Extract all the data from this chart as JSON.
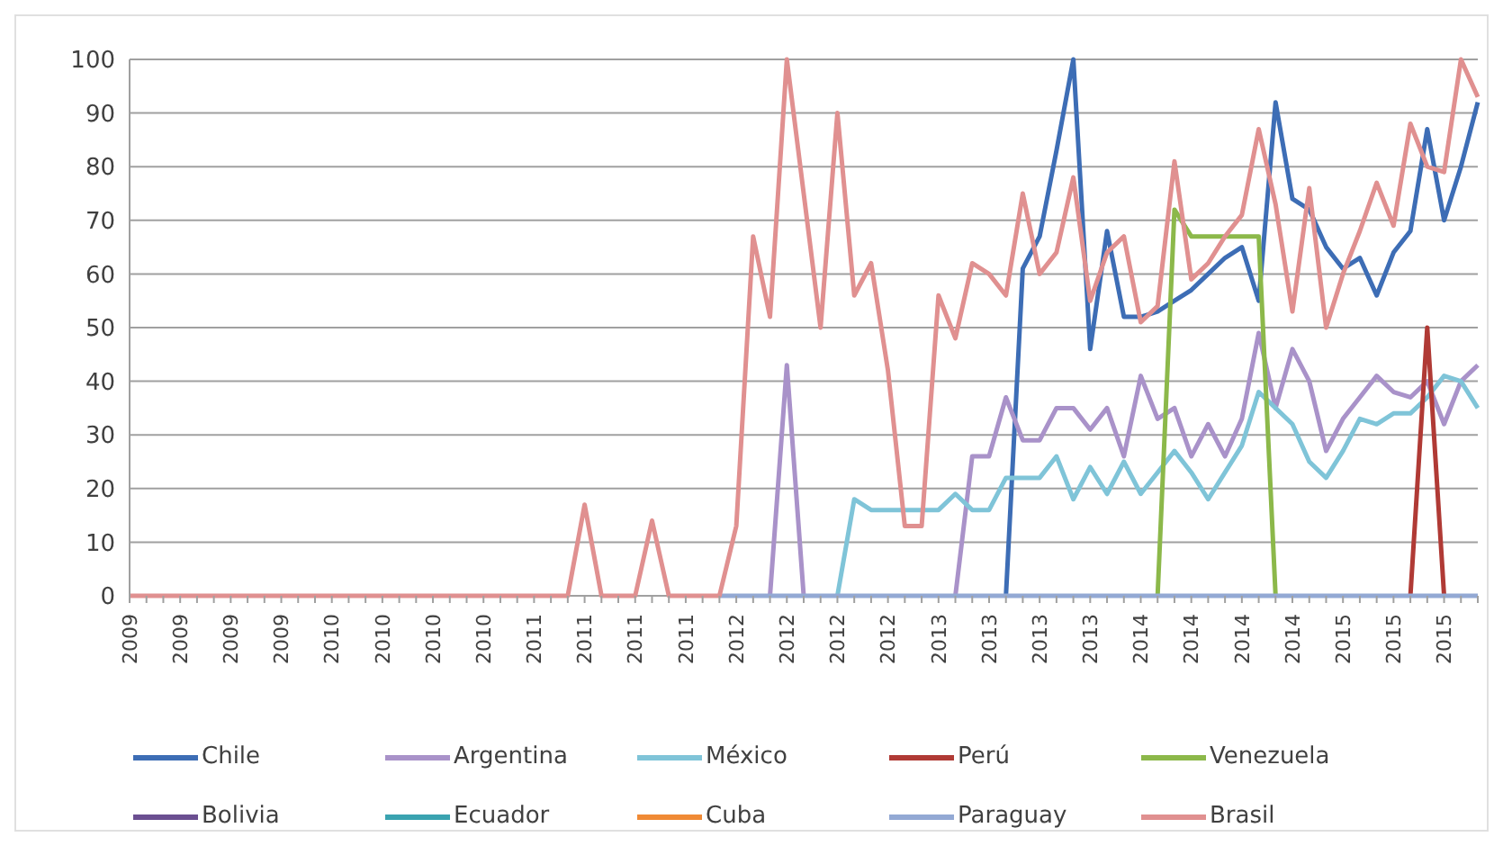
{
  "chart_data": {
    "type": "line",
    "categories": [
      "2009",
      null,
      null,
      "2009",
      null,
      null,
      "2009",
      null,
      null,
      "2009",
      null,
      null,
      "2010",
      null,
      null,
      "2010",
      null,
      null,
      "2010",
      null,
      null,
      "2010",
      null,
      null,
      "2011",
      null,
      null,
      "2011",
      null,
      null,
      "2011",
      null,
      null,
      "2011",
      null,
      null,
      "2012",
      null,
      null,
      "2012",
      null,
      null,
      "2012",
      null,
      null,
      "2012",
      null,
      null,
      "2013",
      null,
      null,
      "2013",
      null,
      null,
      "2013",
      null,
      null,
      "2013",
      null,
      null,
      "2014",
      null,
      null,
      "2014",
      null,
      null,
      "2014",
      null,
      null,
      "2014",
      null,
      null,
      "2015",
      null,
      null,
      "2015",
      null,
      null,
      "2015",
      null,
      null
    ],
    "series": [
      {
        "name": "Chile",
        "color": "#3d6db5",
        "values": [
          null,
          null,
          null,
          null,
          null,
          null,
          null,
          null,
          null,
          null,
          null,
          null,
          null,
          null,
          null,
          null,
          null,
          null,
          null,
          null,
          null,
          null,
          null,
          null,
          null,
          null,
          null,
          null,
          null,
          null,
          null,
          null,
          null,
          null,
          null,
          null,
          null,
          null,
          null,
          null,
          null,
          null,
          null,
          null,
          null,
          null,
          null,
          null,
          null,
          null,
          null,
          null,
          0,
          61,
          67,
          83,
          100,
          46,
          68,
          52,
          52,
          53,
          55,
          57,
          60,
          63,
          65,
          55,
          92,
          74,
          72,
          65,
          61,
          63,
          56,
          64,
          68,
          87,
          70,
          80,
          92
        ]
      },
      {
        "name": "Argentina",
        "color": "#a992c9",
        "values": [
          null,
          null,
          null,
          null,
          null,
          null,
          null,
          null,
          null,
          null,
          null,
          null,
          null,
          null,
          null,
          null,
          null,
          null,
          null,
          null,
          null,
          null,
          null,
          null,
          null,
          null,
          null,
          null,
          null,
          null,
          null,
          null,
          null,
          null,
          null,
          null,
          null,
          null,
          0,
          43,
          0,
          null,
          null,
          null,
          null,
          null,
          null,
          null,
          null,
          0,
          26,
          26,
          37,
          29,
          29,
          35,
          35,
          31,
          35,
          26,
          41,
          33,
          35,
          26,
          32,
          26,
          33,
          49,
          35,
          46,
          40,
          27,
          33,
          37,
          41,
          38,
          37,
          40,
          32,
          40,
          43
        ]
      },
      {
        "name": "México",
        "color": "#7fc4d8",
        "values": [
          null,
          null,
          null,
          null,
          null,
          null,
          null,
          null,
          null,
          null,
          null,
          null,
          null,
          null,
          null,
          null,
          null,
          null,
          null,
          null,
          null,
          null,
          null,
          null,
          null,
          null,
          null,
          null,
          null,
          null,
          null,
          null,
          null,
          null,
          null,
          null,
          null,
          null,
          null,
          null,
          null,
          null,
          0,
          18,
          16,
          16,
          16,
          16,
          16,
          19,
          16,
          16,
          22,
          22,
          22,
          26,
          18,
          24,
          19,
          25,
          19,
          23,
          27,
          23,
          18,
          23,
          28,
          38,
          35,
          32,
          25,
          22,
          27,
          33,
          32,
          34,
          34,
          37,
          41,
          40,
          35
        ]
      },
      {
        "name": "Perú",
        "color": "#b03a35",
        "values": [
          null,
          null,
          null,
          null,
          null,
          null,
          null,
          null,
          null,
          null,
          null,
          null,
          null,
          null,
          null,
          null,
          null,
          null,
          null,
          null,
          null,
          null,
          null,
          null,
          null,
          null,
          null,
          null,
          null,
          null,
          null,
          null,
          null,
          null,
          null,
          null,
          null,
          null,
          null,
          null,
          null,
          null,
          null,
          null,
          null,
          null,
          null,
          null,
          null,
          null,
          null,
          null,
          null,
          null,
          null,
          null,
          null,
          null,
          null,
          null,
          null,
          null,
          null,
          null,
          null,
          null,
          null,
          null,
          null,
          null,
          null,
          null,
          null,
          null,
          null,
          null,
          0,
          50,
          0,
          null,
          null
        ]
      },
      {
        "name": "Venezuela",
        "color": "#8cb84a",
        "values": [
          null,
          null,
          null,
          null,
          null,
          null,
          null,
          null,
          null,
          null,
          null,
          null,
          null,
          null,
          null,
          null,
          null,
          null,
          null,
          null,
          null,
          null,
          null,
          null,
          null,
          null,
          null,
          null,
          null,
          null,
          null,
          null,
          null,
          null,
          null,
          null,
          null,
          null,
          null,
          null,
          null,
          null,
          null,
          null,
          null,
          null,
          null,
          null,
          null,
          null,
          null,
          null,
          null,
          null,
          null,
          null,
          null,
          null,
          null,
          null,
          null,
          0,
          72,
          67,
          67,
          67,
          67,
          67,
          0,
          null,
          null,
          null,
          null,
          null,
          null,
          null,
          null,
          null,
          null,
          null,
          null
        ]
      },
      {
        "name": "Bolivia",
        "color": "#6b4f91",
        "values": [
          null,
          null,
          null,
          null,
          null,
          null,
          null,
          null,
          null,
          null,
          null,
          null,
          null,
          null,
          null,
          null,
          null,
          null,
          null,
          null,
          null,
          null,
          null,
          null,
          null,
          null,
          null,
          null,
          null,
          null,
          null,
          null,
          null,
          null,
          null,
          null,
          null,
          null,
          null,
          null,
          null,
          null,
          null,
          null,
          null,
          null,
          null,
          null,
          null,
          null,
          null,
          null,
          null,
          null,
          null,
          null,
          null,
          null,
          null,
          null,
          null,
          null,
          null,
          null,
          null,
          null,
          null,
          null,
          null,
          null,
          null,
          null,
          null,
          null,
          null,
          null,
          null,
          null,
          null,
          null,
          null
        ]
      },
      {
        "name": "Ecuador",
        "color": "#3aa3b0",
        "values": [
          null,
          null,
          null,
          null,
          null,
          null,
          null,
          null,
          null,
          null,
          null,
          null,
          null,
          null,
          null,
          null,
          null,
          null,
          null,
          null,
          null,
          null,
          null,
          null,
          null,
          null,
          null,
          null,
          null,
          null,
          null,
          null,
          null,
          null,
          null,
          null,
          null,
          null,
          null,
          null,
          null,
          null,
          null,
          null,
          null,
          null,
          null,
          null,
          null,
          null,
          null,
          null,
          null,
          null,
          null,
          null,
          null,
          null,
          null,
          null,
          null,
          null,
          null,
          null,
          null,
          null,
          null,
          null,
          null,
          null,
          null,
          null,
          null,
          null,
          null,
          null,
          null,
          null,
          null,
          null,
          null
        ]
      },
      {
        "name": "Cuba",
        "color": "#f08a35",
        "values": [
          null,
          null,
          null,
          null,
          null,
          null,
          null,
          null,
          null,
          null,
          null,
          null,
          null,
          null,
          null,
          null,
          null,
          null,
          null,
          null,
          null,
          null,
          null,
          null,
          null,
          null,
          null,
          null,
          null,
          null,
          null,
          null,
          null,
          null,
          null,
          null,
          null,
          null,
          null,
          null,
          null,
          null,
          null,
          null,
          null,
          null,
          null,
          null,
          null,
          null,
          null,
          null,
          null,
          null,
          null,
          null,
          null,
          null,
          null,
          null,
          null,
          null,
          null,
          null,
          null,
          null,
          null,
          null,
          null,
          null,
          null,
          null,
          null,
          null,
          null,
          null,
          null,
          null,
          null,
          null,
          null
        ]
      },
      {
        "name": "Paraguay",
        "color": "#93a9d4",
        "values": [
          null,
          null,
          null,
          null,
          null,
          null,
          null,
          null,
          null,
          null,
          null,
          null,
          null,
          null,
          null,
          null,
          null,
          null,
          null,
          null,
          null,
          null,
          null,
          null,
          null,
          null,
          null,
          null,
          null,
          null,
          null,
          null,
          null,
          null,
          null,
          0,
          0,
          0,
          0,
          0,
          0,
          0,
          0,
          0,
          0,
          0,
          0,
          0,
          0,
          0,
          0,
          0,
          0,
          0,
          0,
          0,
          0,
          0,
          0,
          0,
          0,
          0,
          0,
          0,
          0,
          0,
          0,
          0,
          0,
          0,
          0,
          0,
          0,
          0,
          0,
          0,
          0,
          0,
          0,
          0,
          0
        ]
      },
      {
        "name": "Brasil",
        "color": "#e09090",
        "values": [
          0,
          0,
          0,
          0,
          0,
          0,
          0,
          0,
          0,
          0,
          0,
          0,
          0,
          0,
          0,
          0,
          0,
          0,
          0,
          0,
          0,
          0,
          0,
          0,
          0,
          0,
          0,
          17,
          0,
          0,
          0,
          14,
          0,
          0,
          0,
          0,
          13,
          67,
          52,
          100,
          75,
          50,
          90,
          56,
          62,
          42,
          13,
          13,
          56,
          48,
          62,
          60,
          56,
          75,
          60,
          64,
          78,
          55,
          64,
          67,
          51,
          54,
          81,
          59,
          62,
          67,
          71,
          87,
          73,
          53,
          76,
          50,
          60,
          68,
          77,
          69,
          88,
          80,
          79,
          100,
          93
        ]
      }
    ],
    "ylim": [
      0,
      100
    ],
    "yticks": [
      0,
      10,
      20,
      30,
      40,
      50,
      60,
      70,
      80,
      90,
      100
    ],
    "grid": "y",
    "legend": "bottom",
    "marker": "none",
    "line_style": "solid"
  }
}
